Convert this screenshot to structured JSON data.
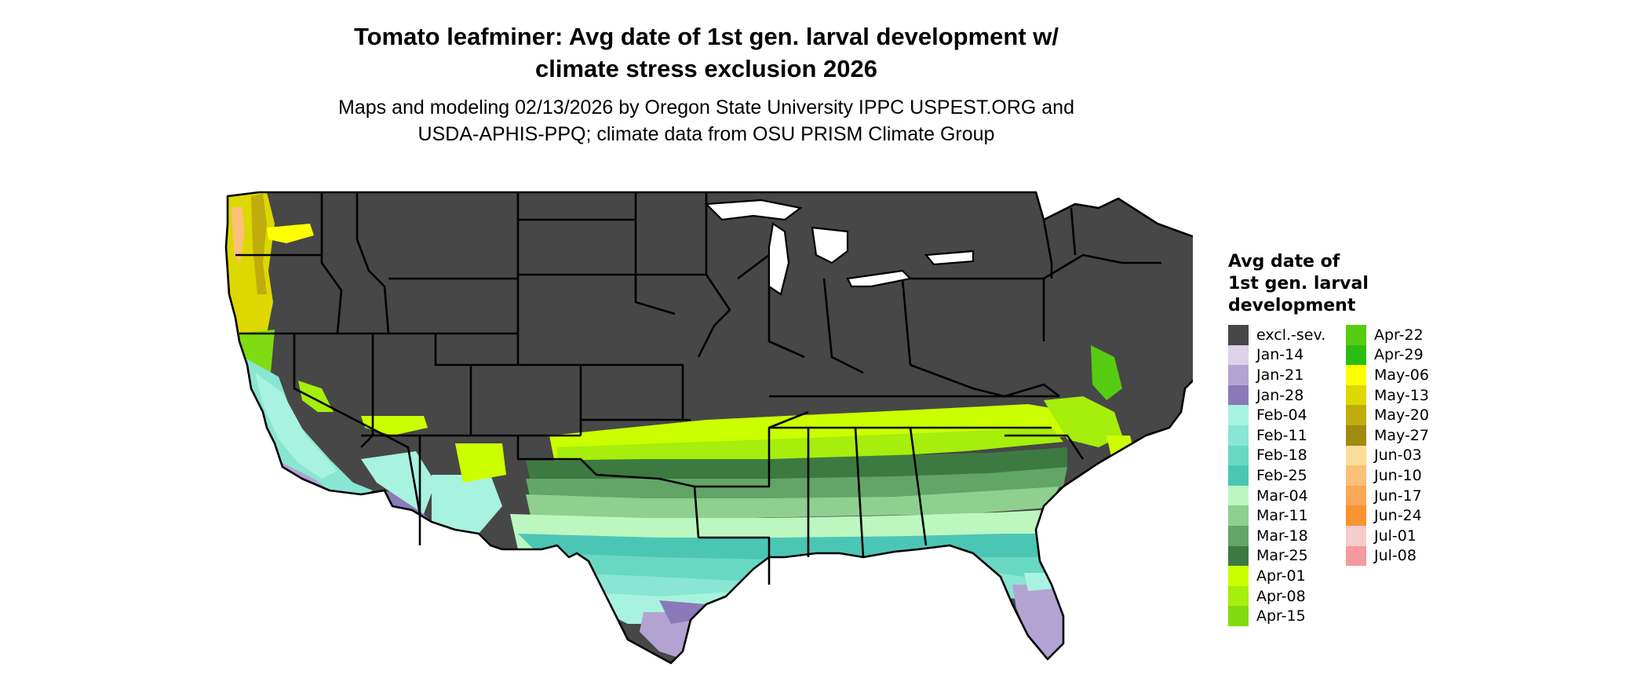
{
  "title_line1": "Tomato leafminer: Avg date of 1st gen. larval development w/",
  "title_line2": "climate stress exclusion 2026",
  "subtitle_line1": "Maps and modeling 02/13/2026 by Oregon State University IPPC USPEST.ORG and",
  "subtitle_line2": "USDA-APHIS-PPQ; climate data from OSU PRISM Climate Group",
  "legend": {
    "title_lines": [
      "Avg date of",
      "1st gen. larval",
      "development"
    ],
    "items": [
      {
        "label": "excl.-sev.",
        "color": "#474747"
      },
      {
        "label": "Jan-14",
        "color": "#dcd3ea"
      },
      {
        "label": "Jan-21",
        "color": "#b3a3d2"
      },
      {
        "label": "Jan-28",
        "color": "#8b7ab9"
      },
      {
        "label": "Feb-04",
        "color": "#a8f2e0"
      },
      {
        "label": "Feb-11",
        "color": "#88e6d2"
      },
      {
        "label": "Feb-18",
        "color": "#68d8c3"
      },
      {
        "label": "Feb-25",
        "color": "#4cc6b4"
      },
      {
        "label": "Mar-04",
        "color": "#bcf7c0"
      },
      {
        "label": "Mar-11",
        "color": "#8fd08f"
      },
      {
        "label": "Mar-18",
        "color": "#62a566"
      },
      {
        "label": "Mar-25",
        "color": "#3c7a42"
      },
      {
        "label": "Apr-01",
        "color": "#cbff00"
      },
      {
        "label": "Apr-08",
        "color": "#a6ee0c"
      },
      {
        "label": "Apr-15",
        "color": "#80dc12"
      },
      {
        "label": "Apr-22",
        "color": "#56cc12"
      },
      {
        "label": "Apr-29",
        "color": "#2cbd12"
      },
      {
        "label": "May-06",
        "color": "#ffff00"
      },
      {
        "label": "May-13",
        "color": "#dcd800"
      },
      {
        "label": "May-20",
        "color": "#c0ac0c"
      },
      {
        "label": "May-27",
        "color": "#a08a10"
      },
      {
        "label": "Jun-03",
        "color": "#fddb98"
      },
      {
        "label": "Jun-10",
        "color": "#fcc078"
      },
      {
        "label": "Jun-17",
        "color": "#fba858"
      },
      {
        "label": "Jun-24",
        "color": "#fa9430"
      },
      {
        "label": "Jul-01",
        "color": "#f6cbcc"
      },
      {
        "label": "Jul-08",
        "color": "#f49a9c"
      }
    ]
  }
}
